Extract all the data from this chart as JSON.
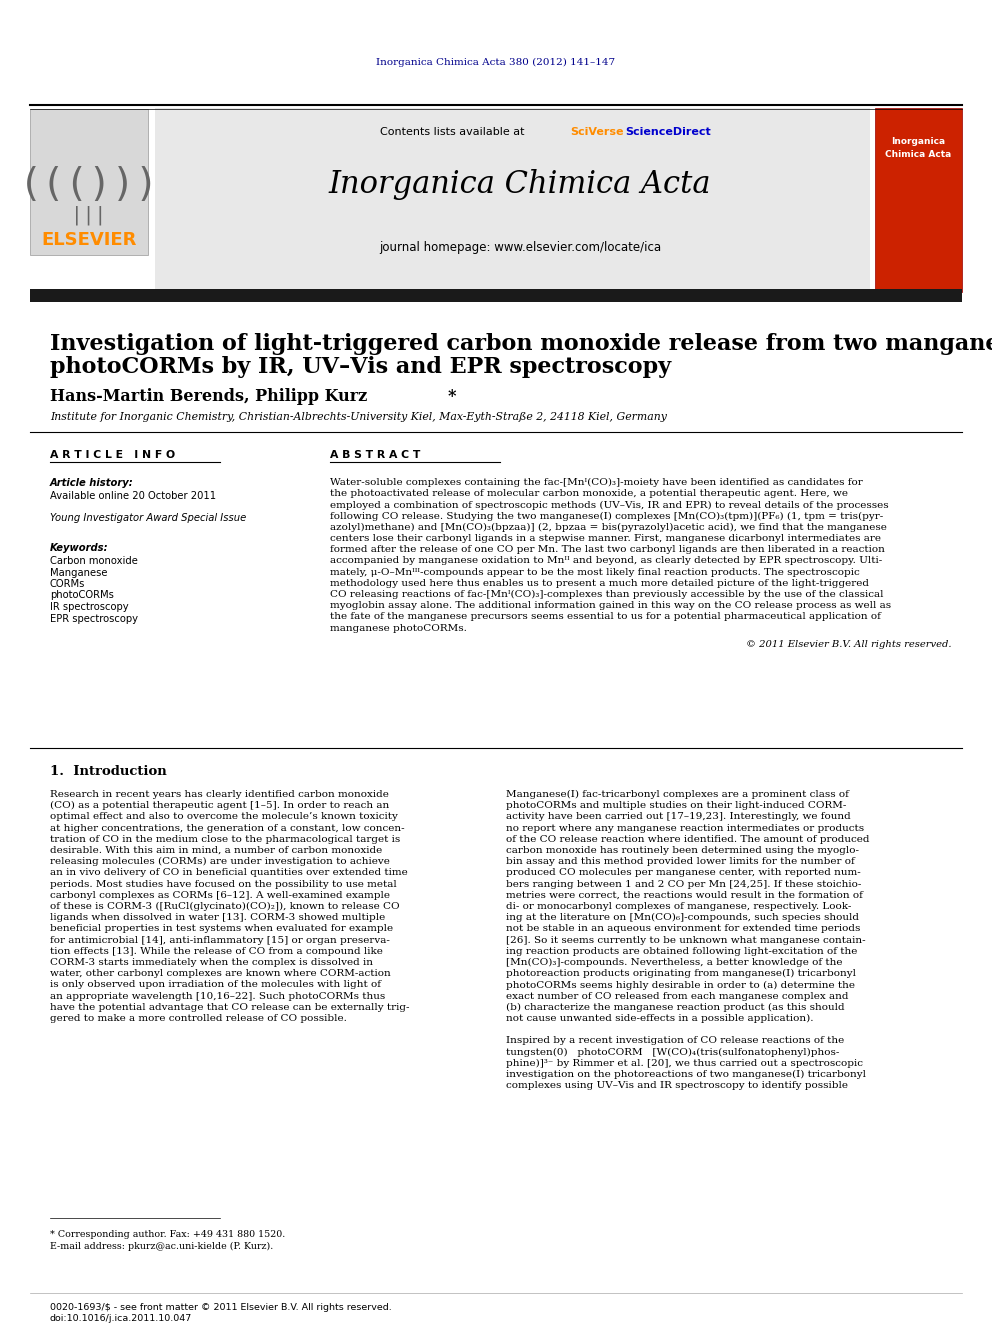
{
  "page_background": "#ffffff",
  "top_margin_text": "Inorganica Chimica Acta 380 (2012) 141–147",
  "top_margin_color": "#00008B",
  "header_bg": "#e8e8e8",
  "header_sciverse_color": "#FF8C00",
  "header_sciencedirect_color": "#0000CD",
  "journal_name": "Inorganica Chimica Acta",
  "journal_homepage": "journal homepage: www.elsevier.com/locate/ica",
  "elsevier_color": "#FF8C00",
  "dark_bar_color": "#1a1a1a",
  "article_title_line1": "Investigation of light-triggered carbon monoxide release from two manganese",
  "article_title_line2": "photoCORMs by IR, UV–Vis and EPR spectroscopy",
  "authors_main": "Hans-Martin Berends, Philipp Kurz ",
  "authors_star": "*",
  "affiliation": "Institute for Inorganic Chemistry, Christian-Albrechts-University Kiel, Max-Eyth-Straße 2, 24118 Kiel, Germany",
  "article_info_header": "A R T I C L E   I N F O",
  "abstract_header": "A B S T R A C T",
  "article_history_label": "Article history:",
  "article_history_text": "Available online 20 October 2011",
  "special_issue": "Young Investigator Award Special Issue",
  "keywords_label": "Keywords:",
  "keywords": [
    "Carbon monoxide",
    "Manganese",
    "CORMs",
    "photoCORMs",
    "IR spectroscopy",
    "EPR spectroscopy"
  ],
  "abstract_lines": [
    "Water-soluble complexes containing the fac-[Mnᴵ(CO)₃]-moiety have been identified as candidates for",
    "the photoactivated release of molecular carbon monoxide, a potential therapeutic agent. Here, we",
    "employed a combination of spectroscopic methods (UV–Vis, IR and EPR) to reveal details of the processes",
    "following CO release. Studying the two manganese(I) complexes [Mn(CO)₃(tpm)](PF₆) (1, tpm = tris(pyr-",
    "azolyl)methane) and [Mn(CO)₃(bpzaa)] (2, bpzaa = bis(pyrazolyl)acetic acid), we find that the manganese",
    "centers lose their carbonyl ligands in a stepwise manner. First, manganese dicarbonyl intermediates are",
    "formed after the release of one CO per Mn. The last two carbonyl ligands are then liberated in a reaction",
    "accompanied by manganese oxidation to Mnᴵᴵ and beyond, as clearly detected by EPR spectroscopy. Ulti-",
    "mately, μ-O–Mnᴵᴵᴵ-compounds appear to be the most likely final reaction products. The spectroscopic",
    "methodology used here thus enables us to present a much more detailed picture of the light-triggered",
    "CO releasing reactions of fac-[Mnᴵ(CO)₃]-complexes than previously accessible by the use of the classical",
    "myoglobin assay alone. The additional information gained in this way on the CO release process as well as",
    "the fate of the manganese precursors seems essential to us for a potential pharmaceutical application of",
    "manganese photoCORMs."
  ],
  "copyright_text": "© 2011 Elsevier B.V. All rights reserved.",
  "section1_title": "1.  Introduction",
  "intro_col1_lines": [
    "Research in recent years has clearly identified carbon monoxide",
    "(CO) as a potential therapeutic agent [1–5]. In order to reach an",
    "optimal effect and also to overcome the molecule’s known toxicity",
    "at higher concentrations, the generation of a constant, low concen-",
    "tration of CO in the medium close to the pharmacological target is",
    "desirable. With this aim in mind, a number of carbon monoxide",
    "releasing molecules (CORMs) are under investigation to achieve",
    "an in vivo delivery of CO in beneficial quantities over extended time",
    "periods. Most studies have focused on the possibility to use metal",
    "carbonyl complexes as CORMs [6–12]. A well-examined example",
    "of these is CORM-3 ([RuCl(glycinato)(CO)₂]), known to release CO",
    "ligands when dissolved in water [13]. CORM-3 showed multiple",
    "beneficial properties in test systems when evaluated for example",
    "for antimicrobial [14], anti-inflammatory [15] or organ preserva-",
    "tion effects [13]. While the release of CO from a compound like",
    "CORM-3 starts immediately when the complex is dissolved in",
    "water, other carbonyl complexes are known where CORM-action",
    "is only observed upon irradiation of the molecules with light of",
    "an appropriate wavelength [10,16–22]. Such photoCORMs thus",
    "have the potential advantage that CO release can be externally trig-",
    "gered to make a more controlled release of CO possible."
  ],
  "intro_col2_lines": [
    "Manganese(I) fac-tricarbonyl complexes are a prominent class of",
    "photoCORMs and multiple studies on their light-induced CORM-",
    "activity have been carried out [17–19,23]. Interestingly, we found",
    "no report where any manganese reaction intermediates or products",
    "of the CO release reaction where identified. The amount of produced",
    "carbon monoxide has routinely been determined using the myoglo-",
    "bin assay and this method provided lower limits for the number of",
    "produced CO molecules per manganese center, with reported num-",
    "bers ranging between 1 and 2 CO per Mn [24,25]. If these stoichio-",
    "metries were correct, the reactions would result in the formation of",
    "di- or monocarbonyl complexes of manganese, respectively. Look-",
    "ing at the literature on [Mn(CO)₆]-compounds, such species should",
    "not be stable in an aqueous environment for extended time periods",
    "[26]. So it seems currently to be unknown what manganese contain-",
    "ing reaction products are obtained following light-excitation of the",
    "[Mn(CO)₃]-compounds. Nevertheless, a better knowledge of the",
    "photoreaction products originating from manganese(I) tricarbonyl",
    "photoCORMs seems highly desirable in order to (a) determine the",
    "exact number of CO released from each manganese complex and",
    "(b) characterize the manganese reaction product (as this should",
    "not cause unwanted side-effects in a possible application).",
    "",
    "Inspired by a recent investigation of CO release reactions of the",
    "tungsten(0)   photoCORM   [W(CO)₄(tris(sulfonatophenyl)phos-",
    "phine)]³⁻ by Rimmer et al. [20], we thus carried out a spectroscopic",
    "investigation on the photoreactions of two manganese(I) tricarbonyl",
    "complexes using UV–Vis and IR spectroscopy to identify possible"
  ],
  "footnote_star": "* Corresponding author. Fax: +49 431 880 1520.",
  "footnote_email": "E-mail address: pkurz@ac.uni-kielde (P. Kurz).",
  "footer_left": "0020-1693/$ - see front matter © 2011 Elsevier B.V. All rights reserved.",
  "footer_doi": "doi:10.1016/j.ica.2011.10.047"
}
